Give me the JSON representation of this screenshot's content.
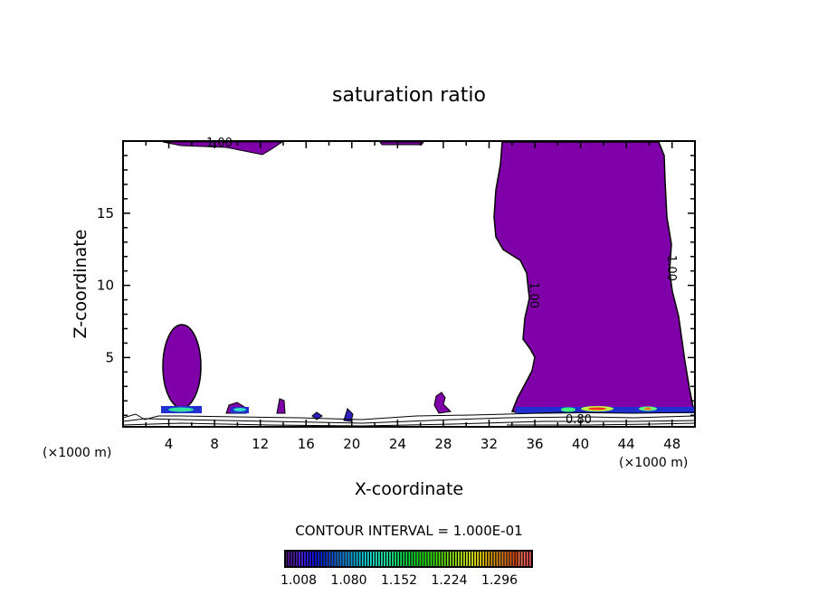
{
  "chart_data": {
    "type": "contour",
    "title": "saturation ratio",
    "xlabel": "X-coordinate",
    "ylabel": "Z-coordinate",
    "x_unit_left": "(×1000 m)",
    "x_unit_right": "(×1000 m)",
    "xlim": [
      0,
      50
    ],
    "ylim": [
      0.2,
      20
    ],
    "xticks": [
      4,
      8,
      12,
      16,
      20,
      24,
      28,
      32,
      36,
      40,
      44,
      48
    ],
    "yticks": [
      5,
      10,
      15
    ],
    "contour_labels": [
      {
        "text": "1.00",
        "x": 8.7,
        "z": 19.9
      },
      {
        "text": "1.00",
        "x": 35.5,
        "z": 9.6
      },
      {
        "text": "1.00",
        "x": 47.7,
        "z": 10.9
      },
      {
        "text": "0.80",
        "x": 40.0,
        "z": 0.9
      }
    ],
    "contour_interval": "CONTOUR INTERVAL = 1.000E-01",
    "colorbar": {
      "ticks": [
        "1.008",
        "1.080",
        "1.152",
        "1.224",
        "1.296"
      ],
      "min": 1.0,
      "max": 1.33
    },
    "fill_color": "#7f00a8"
  }
}
